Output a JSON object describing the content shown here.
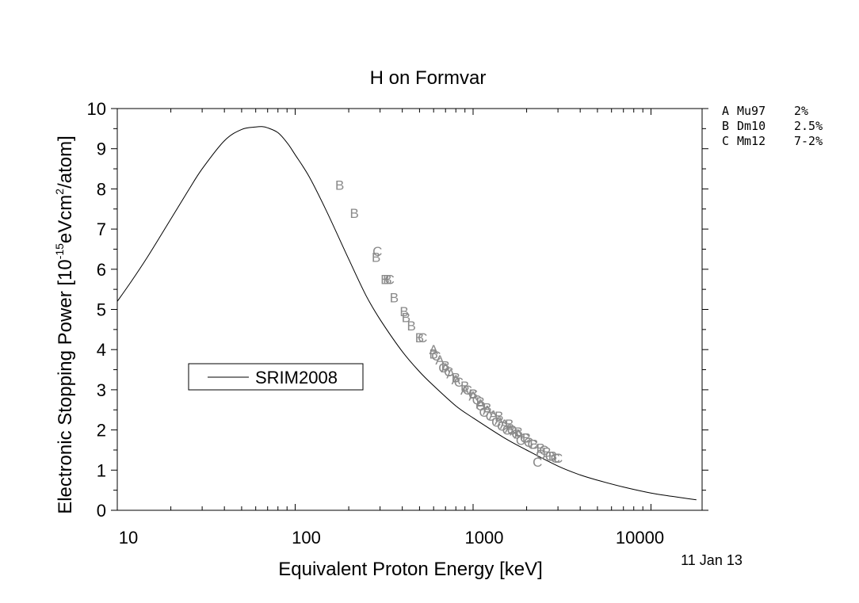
{
  "chart_data": {
    "type": "scatter",
    "title": "H on Formvar",
    "xlabel": "Equivalent Proton Energy [keV]",
    "ylabel_main": "Electronic Stopping Power [10",
    "ylabel_exp1": "-15",
    "ylabel_mid": "eVcm",
    "ylabel_exp2": "2",
    "ylabel_end": "/atom]",
    "x_scale": "log",
    "xlim": [
      10,
      20000
    ],
    "ylim": [
      0,
      10
    ],
    "x_ticks": [
      10,
      100,
      1000,
      10000
    ],
    "x_tick_labels": [
      "10",
      "100",
      "1000",
      "10000"
    ],
    "y_ticks": [
      0,
      1,
      2,
      3,
      4,
      5,
      6,
      7,
      8,
      9,
      10
    ],
    "y_tick_labels": [
      "0",
      "1",
      "2",
      "3",
      "4",
      "5",
      "6",
      "7",
      "8",
      "9",
      "10"
    ],
    "date_stamp": "11 Jan 13",
    "legend_box": {
      "label": "SRIM2008",
      "placement": "left-middle"
    },
    "dataset_legend": [
      {
        "code": "A",
        "ref": "Mu97",
        "error": "2%"
      },
      {
        "code": "B",
        "ref": "Dm10",
        "error": "2.5%"
      },
      {
        "code": "C",
        "ref": "Mm12",
        "error": "7-2%"
      }
    ],
    "series": [
      {
        "name": "SRIM2008",
        "kind": "line",
        "x": [
          10,
          12,
          15,
          20,
          25,
          30,
          40,
          50,
          60,
          65,
          70,
          80,
          90,
          100,
          120,
          150,
          200,
          250,
          300,
          400,
          500,
          600,
          800,
          1000,
          1500,
          2000,
          3000,
          4000,
          5000,
          7000,
          10000,
          13000,
          15000,
          18000
        ],
        "y": [
          5.2,
          5.7,
          6.35,
          7.25,
          7.95,
          8.5,
          9.2,
          9.48,
          9.54,
          9.55,
          9.52,
          9.4,
          9.15,
          8.85,
          8.3,
          7.45,
          6.25,
          5.35,
          4.75,
          3.95,
          3.45,
          3.1,
          2.6,
          2.3,
          1.8,
          1.5,
          1.1,
          0.88,
          0.75,
          0.58,
          0.43,
          0.35,
          0.31,
          0.26
        ]
      },
      {
        "name": "A",
        "kind": "markers",
        "marker": "A",
        "x": [
          600,
          650,
          700,
          750,
          800,
          900,
          1000,
          1100,
          1200,
          1300,
          1400,
          1500,
          1600,
          1700,
          1800
        ],
        "y": [
          4.0,
          3.75,
          3.55,
          3.4,
          3.25,
          3.0,
          2.85,
          2.65,
          2.5,
          2.38,
          2.25,
          2.15,
          2.05,
          1.98,
          1.9
        ]
      },
      {
        "name": "B",
        "kind": "markers",
        "marker": "B",
        "x": [
          178,
          215,
          285,
          320,
          330,
          360,
          410,
          420,
          450,
          500,
          600,
          700,
          800,
          900,
          1000,
          1100,
          1200,
          1400,
          1600,
          1800,
          2000,
          2200,
          2400,
          2600,
          2800
        ],
        "y": [
          8.1,
          7.4,
          6.3,
          5.75,
          5.75,
          5.3,
          4.95,
          4.8,
          4.6,
          4.3,
          3.9,
          3.6,
          3.3,
          3.1,
          2.9,
          2.7,
          2.55,
          2.35,
          2.15,
          1.95,
          1.8,
          1.65,
          1.55,
          1.45,
          1.35
        ]
      },
      {
        "name": "C",
        "kind": "markers",
        "marker": "C",
        "x": [
          290,
          340,
          520,
          620,
          680,
          730,
          830,
          930,
          1000,
          1050,
          1100,
          1150,
          1250,
          1350,
          1450,
          1550,
          1650,
          1750,
          1850,
          1950,
          2050,
          2150,
          2300,
          2400,
          2500,
          2700,
          2900,
          3000
        ],
        "y": [
          6.45,
          5.75,
          4.3,
          3.85,
          3.55,
          3.45,
          3.2,
          3.0,
          2.9,
          2.75,
          2.6,
          2.45,
          2.35,
          2.2,
          2.1,
          2.0,
          2.0,
          1.9,
          1.75,
          1.8,
          1.7,
          1.65,
          1.2,
          1.4,
          1.5,
          1.35,
          1.3,
          1.3
        ]
      }
    ]
  }
}
